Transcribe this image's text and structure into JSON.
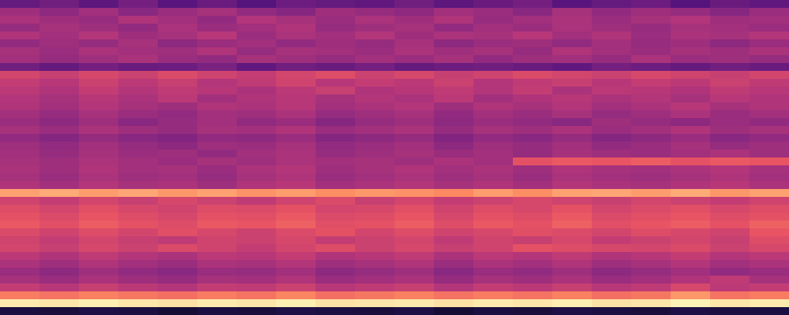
{
  "chart_data": {
    "type": "heatmap",
    "tick_labels": false,
    "cells": [
      [
        0.3,
        0.33,
        0.28,
        0.34,
        0.27,
        0.31,
        0.26,
        0.32,
        0.3,
        0.29,
        0.33,
        0.28,
        0.31,
        0.34,
        0.27,
        0.3,
        0.32,
        0.26,
        0.31,
        0.29
      ],
      [
        0.44,
        0.4,
        0.45,
        0.39,
        0.43,
        0.46,
        0.41,
        0.38,
        0.44,
        0.42,
        0.4,
        0.45,
        0.43,
        0.39,
        0.46,
        0.41,
        0.44,
        0.42,
        0.38,
        0.43
      ],
      [
        0.47,
        0.44,
        0.42,
        0.48,
        0.45,
        0.41,
        0.49,
        0.46,
        0.43,
        0.47,
        0.44,
        0.48,
        0.42,
        0.45,
        0.47,
        0.43,
        0.46,
        0.49,
        0.44,
        0.45
      ],
      [
        0.42,
        0.46,
        0.44,
        0.41,
        0.47,
        0.43,
        0.45,
        0.48,
        0.42,
        0.44,
        0.46,
        0.41,
        0.45,
        0.43,
        0.47,
        0.44,
        0.42,
        0.46,
        0.45,
        0.43
      ],
      [
        0.48,
        0.45,
        0.49,
        0.44,
        0.46,
        0.5,
        0.43,
        0.47,
        0.45,
        0.49,
        0.44,
        0.47,
        0.46,
        0.5,
        0.45,
        0.48,
        0.43,
        0.47,
        0.46,
        0.49
      ],
      [
        0.41,
        0.44,
        0.42,
        0.46,
        0.4,
        0.43,
        0.45,
        0.41,
        0.44,
        0.42,
        0.46,
        0.4,
        0.43,
        0.44,
        0.41,
        0.45,
        0.42,
        0.44,
        0.4,
        0.43
      ],
      [
        0.46,
        0.43,
        0.47,
        0.45,
        0.44,
        0.48,
        0.42,
        0.46,
        0.45,
        0.43,
        0.47,
        0.44,
        0.46,
        0.42,
        0.48,
        0.45,
        0.43,
        0.46,
        0.44,
        0.47
      ],
      [
        0.45,
        0.42,
        0.44,
        0.47,
        0.43,
        0.41,
        0.46,
        0.44,
        0.42,
        0.45,
        0.43,
        0.46,
        0.41,
        0.44,
        0.45,
        0.42,
        0.47,
        0.43,
        0.44,
        0.42
      ],
      [
        0.33,
        0.3,
        0.34,
        0.31,
        0.32,
        0.35,
        0.29,
        0.33,
        0.31,
        0.34,
        0.3,
        0.32,
        0.33,
        0.31,
        0.29,
        0.34,
        0.32,
        0.3,
        0.33,
        0.31
      ],
      [
        0.57,
        0.54,
        0.58,
        0.55,
        0.59,
        0.56,
        0.53,
        0.57,
        0.6,
        0.55,
        0.58,
        0.54,
        0.56,
        0.59,
        0.57,
        0.55,
        0.58,
        0.56,
        0.54,
        0.57
      ],
      [
        0.53,
        0.5,
        0.55,
        0.51,
        0.54,
        0.49,
        0.52,
        0.56,
        0.5,
        0.53,
        0.51,
        0.55,
        0.49,
        0.52,
        0.54,
        0.5,
        0.53,
        0.51,
        0.55,
        0.52
      ],
      [
        0.51,
        0.48,
        0.53,
        0.49,
        0.52,
        0.5,
        0.47,
        0.51,
        0.54,
        0.48,
        0.5,
        0.52,
        0.49,
        0.53,
        0.47,
        0.51,
        0.5,
        0.48,
        0.52,
        0.5
      ],
      [
        0.49,
        0.46,
        0.5,
        0.47,
        0.51,
        0.45,
        0.48,
        0.5,
        0.46,
        0.49,
        0.47,
        0.51,
        0.45,
        0.48,
        0.5,
        0.47,
        0.49,
        0.46,
        0.5,
        0.48
      ],
      [
        0.48,
        0.45,
        0.49,
        0.46,
        0.44,
        0.48,
        0.47,
        0.5,
        0.45,
        0.47,
        0.49,
        0.44,
        0.48,
        0.46,
        0.49,
        0.45,
        0.47,
        0.5,
        0.46,
        0.48
      ],
      [
        0.45,
        0.42,
        0.46,
        0.43,
        0.41,
        0.45,
        0.44,
        0.47,
        0.42,
        0.44,
        0.46,
        0.41,
        0.45,
        0.43,
        0.46,
        0.42,
        0.44,
        0.47,
        0.43,
        0.45
      ],
      [
        0.43,
        0.4,
        0.44,
        0.39,
        0.42,
        0.45,
        0.41,
        0.43,
        0.38,
        0.42,
        0.44,
        0.4,
        0.43,
        0.41,
        0.39,
        0.44,
        0.42,
        0.4,
        0.43,
        0.41
      ],
      [
        0.46,
        0.43,
        0.47,
        0.44,
        0.42,
        0.46,
        0.45,
        0.48,
        0.43,
        0.45,
        0.47,
        0.42,
        0.46,
        0.44,
        0.47,
        0.43,
        0.45,
        0.48,
        0.44,
        0.46
      ],
      [
        0.41,
        0.38,
        0.42,
        0.39,
        0.37,
        0.41,
        0.4,
        0.43,
        0.38,
        0.4,
        0.42,
        0.37,
        0.41,
        0.39,
        0.42,
        0.38,
        0.4,
        0.43,
        0.39,
        0.41
      ],
      [
        0.44,
        0.41,
        0.45,
        0.42,
        0.4,
        0.44,
        0.43,
        0.46,
        0.41,
        0.43,
        0.45,
        0.4,
        0.44,
        0.42,
        0.45,
        0.41,
        0.43,
        0.46,
        0.42,
        0.44
      ],
      [
        0.45,
        0.42,
        0.46,
        0.43,
        0.44,
        0.41,
        0.45,
        0.47,
        0.42,
        0.44,
        0.46,
        0.43,
        0.45,
        0.42,
        0.46,
        0.44,
        0.43,
        0.45,
        0.47,
        0.44
      ],
      [
        0.46,
        0.44,
        0.47,
        0.45,
        0.43,
        0.46,
        0.44,
        0.47,
        0.45,
        0.46,
        0.44,
        0.47,
        0.45,
        0.62,
        0.64,
        0.63,
        0.65,
        0.62,
        0.64,
        0.63
      ],
      [
        0.47,
        0.44,
        0.48,
        0.45,
        0.46,
        0.43,
        0.47,
        0.49,
        0.44,
        0.46,
        0.48,
        0.45,
        0.47,
        0.44,
        0.48,
        0.46,
        0.45,
        0.47,
        0.49,
        0.46
      ],
      [
        0.46,
        0.43,
        0.47,
        0.44,
        0.45,
        0.42,
        0.46,
        0.48,
        0.43,
        0.45,
        0.47,
        0.44,
        0.46,
        0.43,
        0.47,
        0.45,
        0.44,
        0.46,
        0.48,
        0.45
      ],
      [
        0.48,
        0.45,
        0.49,
        0.46,
        0.47,
        0.44,
        0.48,
        0.5,
        0.45,
        0.47,
        0.49,
        0.46,
        0.48,
        0.45,
        0.49,
        0.47,
        0.46,
        0.48,
        0.5,
        0.47
      ],
      [
        0.8,
        0.82,
        0.79,
        0.81,
        0.78,
        0.8,
        0.77,
        0.79,
        0.76,
        0.78,
        0.77,
        0.75,
        0.79,
        0.76,
        0.8,
        0.81,
        0.79,
        0.82,
        0.78,
        0.8
      ],
      [
        0.56,
        0.53,
        0.57,
        0.54,
        0.58,
        0.55,
        0.52,
        0.56,
        0.59,
        0.54,
        0.57,
        0.53,
        0.55,
        0.58,
        0.56,
        0.54,
        0.57,
        0.55,
        0.53,
        0.56
      ],
      [
        0.6,
        0.57,
        0.61,
        0.58,
        0.56,
        0.6,
        0.59,
        0.62,
        0.57,
        0.58,
        0.61,
        0.56,
        0.6,
        0.58,
        0.62,
        0.57,
        0.59,
        0.61,
        0.58,
        0.6
      ],
      [
        0.62,
        0.59,
        0.63,
        0.6,
        0.58,
        0.62,
        0.61,
        0.64,
        0.59,
        0.6,
        0.63,
        0.58,
        0.62,
        0.6,
        0.64,
        0.59,
        0.61,
        0.63,
        0.6,
        0.62
      ],
      [
        0.64,
        0.61,
        0.65,
        0.62,
        0.6,
        0.64,
        0.63,
        0.66,
        0.61,
        0.62,
        0.65,
        0.6,
        0.64,
        0.62,
        0.66,
        0.61,
        0.63,
        0.65,
        0.62,
        0.66
      ],
      [
        0.59,
        0.56,
        0.6,
        0.57,
        0.61,
        0.58,
        0.55,
        0.59,
        0.62,
        0.57,
        0.6,
        0.56,
        0.58,
        0.61,
        0.59,
        0.57,
        0.6,
        0.58,
        0.56,
        0.63
      ],
      [
        0.56,
        0.53,
        0.57,
        0.54,
        0.52,
        0.56,
        0.55,
        0.58,
        0.53,
        0.55,
        0.57,
        0.52,
        0.56,
        0.54,
        0.58,
        0.53,
        0.55,
        0.57,
        0.54,
        0.6
      ],
      [
        0.57,
        0.54,
        0.58,
        0.55,
        0.59,
        0.56,
        0.53,
        0.57,
        0.6,
        0.55,
        0.58,
        0.54,
        0.56,
        0.62,
        0.6,
        0.58,
        0.57,
        0.59,
        0.55,
        0.58
      ],
      [
        0.51,
        0.48,
        0.52,
        0.49,
        0.47,
        0.51,
        0.5,
        0.53,
        0.48,
        0.5,
        0.52,
        0.47,
        0.51,
        0.49,
        0.52,
        0.48,
        0.5,
        0.53,
        0.49,
        0.51
      ],
      [
        0.47,
        0.44,
        0.48,
        0.45,
        0.43,
        0.47,
        0.46,
        0.49,
        0.44,
        0.46,
        0.48,
        0.43,
        0.47,
        0.45,
        0.48,
        0.44,
        0.46,
        0.49,
        0.45,
        0.47
      ],
      [
        0.43,
        0.4,
        0.44,
        0.41,
        0.39,
        0.43,
        0.42,
        0.45,
        0.4,
        0.42,
        0.44,
        0.39,
        0.43,
        0.41,
        0.44,
        0.4,
        0.42,
        0.45,
        0.41,
        0.43
      ],
      [
        0.46,
        0.43,
        0.47,
        0.44,
        0.42,
        0.46,
        0.45,
        0.48,
        0.43,
        0.45,
        0.47,
        0.42,
        0.46,
        0.44,
        0.47,
        0.43,
        0.45,
        0.48,
        0.52,
        0.46
      ],
      [
        0.53,
        0.5,
        0.54,
        0.51,
        0.49,
        0.53,
        0.52,
        0.55,
        0.5,
        0.52,
        0.54,
        0.49,
        0.53,
        0.51,
        0.54,
        0.5,
        0.52,
        0.58,
        0.51,
        0.53
      ],
      [
        0.72,
        0.7,
        0.73,
        0.71,
        0.69,
        0.72,
        0.7,
        0.74,
        0.69,
        0.71,
        0.73,
        0.7,
        0.72,
        0.7,
        0.73,
        0.69,
        0.71,
        0.78,
        0.7,
        0.72
      ],
      [
        0.96,
        0.95,
        0.97,
        0.95,
        0.94,
        0.96,
        0.95,
        0.97,
        0.94,
        0.95,
        0.96,
        0.94,
        0.96,
        0.95,
        0.97,
        0.94,
        0.95,
        0.98,
        0.95,
        0.96
      ],
      [
        0.12,
        0.11,
        0.13,
        0.12,
        0.1,
        0.12,
        0.11,
        0.13,
        0.12,
        0.11,
        0.13,
        0.1,
        0.12,
        0.11,
        0.13,
        0.12,
        0.11,
        0.13,
        0.12,
        0.12
      ]
    ]
  }
}
